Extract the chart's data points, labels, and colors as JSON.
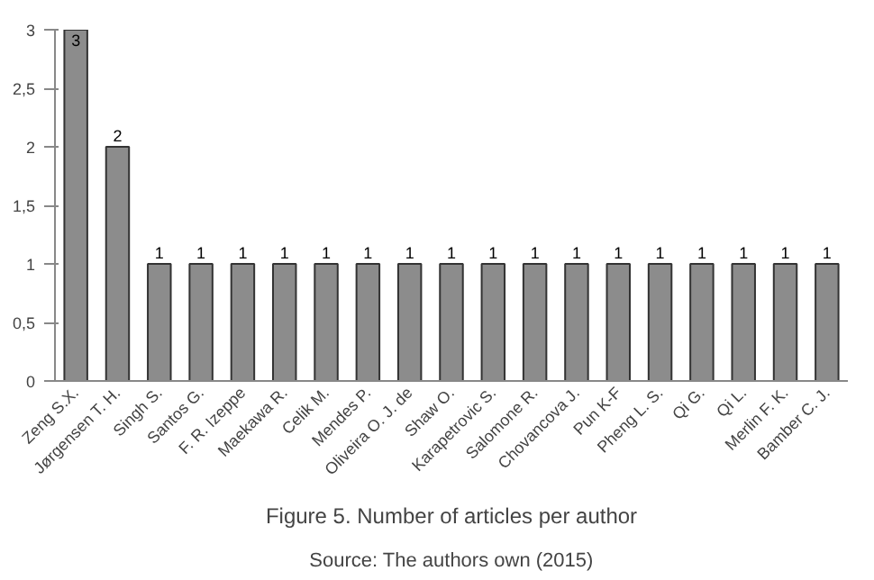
{
  "chart_data": {
    "type": "bar",
    "title": "Figure 5. Number of articles per author",
    "categories": [
      "Zeng S.X.",
      "Jørgensen T. H.",
      "Singh S.",
      "Santos G.",
      "F. R. Izeppe",
      "Maekawa R.",
      "Celik M.",
      "Mendes P.",
      "Oliveira O. J. de",
      "Shaw O.",
      "Karapetrovic S.",
      "Salomone R.",
      "Chovancova J.",
      "Pun K-F",
      "Pheng L. S.",
      "Qi G.",
      "Qi L.",
      "Merlin F. K.",
      "Bamber C. J."
    ],
    "values": [
      3,
      2,
      1,
      1,
      1,
      1,
      1,
      1,
      1,
      1,
      1,
      1,
      1,
      1,
      1,
      1,
      1,
      1,
      1
    ],
    "color": "#8c8c8c",
    "ylim": [
      0,
      3
    ],
    "yticks": [
      0,
      {
        "value": 0.5,
        "label": "0,5"
      },
      1,
      {
        "value": 1.5,
        "label": "1,5"
      },
      2,
      {
        "value": 2.5,
        "label": "2,5"
      },
      3
    ],
    "data_labels": true,
    "annotations": [
      "Source: The authors own (2015)"
    ]
  }
}
